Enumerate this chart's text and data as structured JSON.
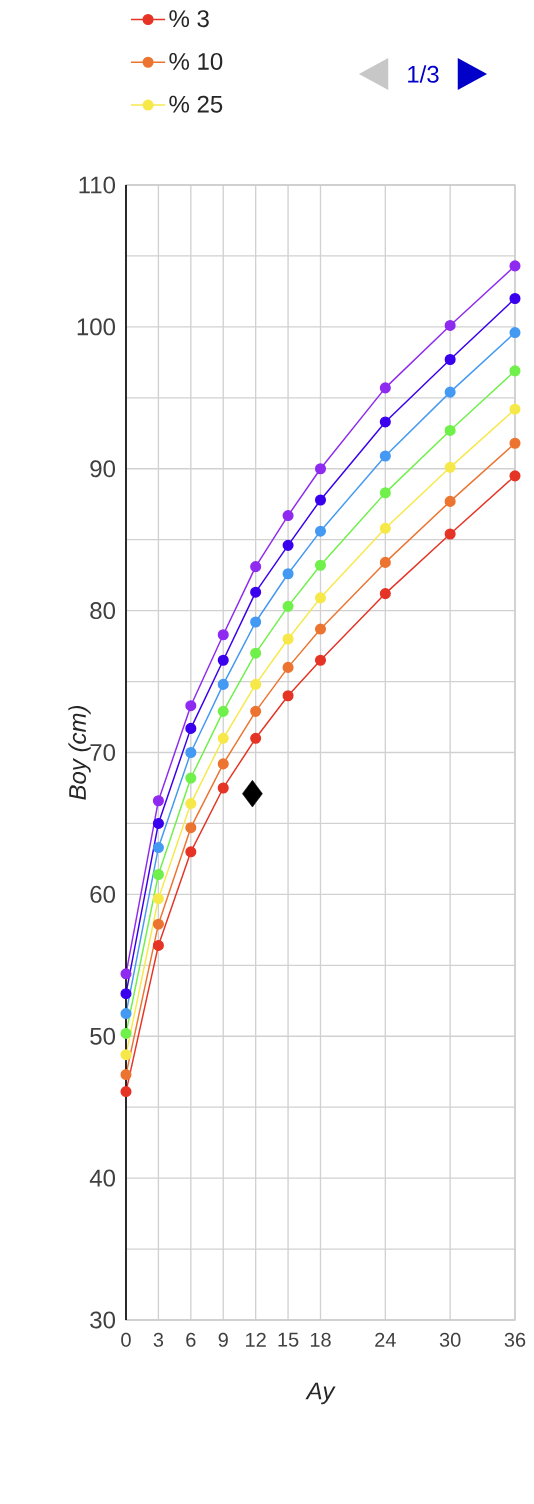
{
  "chart_data": {
    "type": "line",
    "xlabel": "Ay",
    "ylabel": "Boy (cm)",
    "annotations": [
      "1/3"
    ],
    "x": [
      0,
      3,
      6,
      9,
      12,
      15,
      18,
      24,
      30,
      36
    ],
    "xlim": [
      0,
      36
    ],
    "xticks": [
      0,
      3,
      6,
      9,
      12,
      15,
      18,
      24,
      30,
      36
    ],
    "ylim": [
      30,
      110
    ],
    "yticks": [
      30,
      {
        "value": 35,
        "label": null
      },
      40,
      {
        "value": 45,
        "label": null
      },
      50,
      {
        "value": 55,
        "label": null
      },
      60,
      {
        "value": 65,
        "label": null
      },
      70,
      {
        "value": 75,
        "label": null
      },
      80,
      {
        "value": 85,
        "label": null
      },
      90,
      {
        "value": 95,
        "label": null
      },
      100,
      {
        "value": 105,
        "label": null
      },
      110
    ],
    "grid": true,
    "legend": "top left",
    "marker": "circle",
    "series": [
      {
        "name": "% 3",
        "color": "#e53425",
        "values": [
          46.1,
          56.4,
          63.0,
          67.5,
          71.0,
          74.0,
          76.5,
          81.2,
          85.4,
          89.5
        ]
      },
      {
        "name": "% 10",
        "color": "#ec7430",
        "values": [
          47.3,
          57.9,
          64.7,
          69.2,
          72.9,
          76.0,
          78.7,
          83.4,
          87.7,
          91.8
        ]
      },
      {
        "name": "% 25",
        "color": "#f7e84a",
        "values": [
          48.7,
          59.7,
          66.4,
          71.0,
          74.8,
          78.0,
          80.9,
          85.8,
          90.1,
          94.2
        ]
      },
      {
        "color": "#6ff04a",
        "values": [
          50.2,
          61.4,
          68.2,
          72.9,
          77.0,
          80.3,
          83.2,
          88.3,
          92.7,
          96.9
        ]
      },
      {
        "color": "#4499f2",
        "values": [
          51.6,
          63.3,
          70.0,
          74.8,
          79.2,
          82.6,
          85.6,
          90.9,
          95.4,
          99.6
        ]
      },
      {
        "color": "#3a00ee",
        "values": [
          53.0,
          65.0,
          71.7,
          76.5,
          81.3,
          84.6,
          87.8,
          93.3,
          97.7,
          102.0
        ]
      },
      {
        "color": "#8f2bf0",
        "values": [
          54.4,
          66.6,
          73.3,
          78.3,
          83.1,
          86.7,
          90.0,
          95.7,
          100.1,
          104.3
        ]
      },
      {
        "type": "scatter",
        "marker": "diamond",
        "color": "#000000",
        "x": [
          11.7
        ],
        "values": [
          67.1
        ]
      }
    ]
  }
}
